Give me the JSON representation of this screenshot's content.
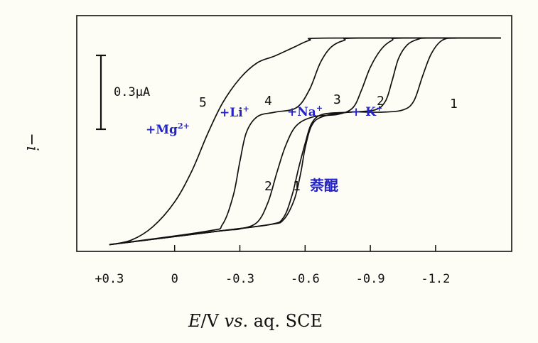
{
  "chart_data": {
    "type": "line",
    "title": "",
    "xlabel_parts": {
      "e": "E",
      "slash_v": "/V ",
      "vs": "vs",
      "rest": ". aq. SCE"
    },
    "ylabel": "−i",
    "xlim": [
      0.45,
      -1.55
    ],
    "ylim": [
      0.0,
      1.05
    ],
    "x_ticks": [
      {
        "value": 0.3,
        "label": "+0.3"
      },
      {
        "value": 0.0,
        "label": "0"
      },
      {
        "value": -0.3,
        "label": "-0.3"
      },
      {
        "value": -0.6,
        "label": "-0.6"
      },
      {
        "value": -0.9,
        "label": "-0.9"
      },
      {
        "value": -1.2,
        "label": "-1.2"
      }
    ],
    "scale_bar": {
      "label": "0.3μA"
    },
    "series": [
      {
        "name": "1",
        "x": [
          0.3,
          -0.2,
          -0.44,
          -0.5,
          -0.55,
          -0.58,
          -0.6,
          -0.63,
          -0.68,
          -0.8,
          -0.95,
          -1.05,
          -1.1,
          -1.14,
          -1.18,
          -1.23,
          -1.3,
          -1.5
        ],
        "y": [
          0.03,
          0.09,
          0.12,
          0.14,
          0.23,
          0.35,
          0.46,
          0.56,
          0.6,
          0.62,
          0.62,
          0.63,
          0.67,
          0.78,
          0.88,
          0.94,
          0.95,
          0.95
        ]
      },
      {
        "name": "2",
        "x": [
          0.3,
          -0.2,
          -0.44,
          -0.5,
          -0.54,
          -0.57,
          -0.6,
          -0.63,
          -0.68,
          -0.8,
          -0.92,
          -0.97,
          -1.0,
          -1.03,
          -1.07,
          -1.12,
          -1.18,
          -1.5
        ],
        "y": [
          0.03,
          0.09,
          0.12,
          0.15,
          0.25,
          0.37,
          0.48,
          0.57,
          0.61,
          0.62,
          0.63,
          0.67,
          0.76,
          0.86,
          0.92,
          0.945,
          0.95,
          0.95
        ]
      },
      {
        "name": "3",
        "x": [
          0.3,
          -0.2,
          -0.3,
          -0.38,
          -0.43,
          -0.47,
          -0.51,
          -0.56,
          -0.64,
          -0.75,
          -0.82,
          -0.86,
          -0.9,
          -0.95,
          -1.0,
          -1.05,
          -1.5
        ],
        "y": [
          0.03,
          0.09,
          0.1,
          0.13,
          0.22,
          0.35,
          0.47,
          0.56,
          0.6,
          0.61,
          0.64,
          0.72,
          0.82,
          0.9,
          0.94,
          0.95,
          0.95
        ]
      },
      {
        "name": "4",
        "x": [
          0.3,
          -0.15,
          -0.22,
          -0.27,
          -0.3,
          -0.33,
          -0.38,
          -0.46,
          -0.56,
          -0.62,
          -0.67,
          -0.72,
          -0.78,
          -0.85,
          -1.5
        ],
        "y": [
          0.03,
          0.09,
          0.12,
          0.25,
          0.4,
          0.53,
          0.6,
          0.62,
          0.64,
          0.72,
          0.84,
          0.91,
          0.94,
          0.95,
          0.95
        ]
      },
      {
        "name": "5",
        "x": [
          0.3,
          0.2,
          0.1,
          0.0,
          -0.08,
          -0.15,
          -0.22,
          -0.3,
          -0.38,
          -0.46,
          -0.55,
          -0.62,
          -0.7,
          -1.5
        ],
        "y": [
          0.03,
          0.05,
          0.11,
          0.22,
          0.36,
          0.52,
          0.66,
          0.77,
          0.84,
          0.87,
          0.91,
          0.94,
          0.95,
          0.95
        ]
      }
    ],
    "annotations": [
      {
        "text": "5",
        "kind": "num"
      },
      {
        "text": "4",
        "kind": "num"
      },
      {
        "text": "3",
        "kind": "num"
      },
      {
        "text": "2",
        "kind": "num"
      },
      {
        "text": "1",
        "kind": "num"
      },
      {
        "text": "2",
        "kind": "num"
      },
      {
        "text": "1",
        "kind": "num"
      },
      {
        "text": "+Mg",
        "sup": "2+",
        "kind": "ion"
      },
      {
        "text": "+Li",
        "sup": "+",
        "kind": "ion"
      },
      {
        "text": "+Na",
        "sup": "+",
        "kind": "ion"
      },
      {
        "text": "+ K",
        "sup": "+",
        "kind": "ion"
      },
      {
        "text": "萘醌",
        "kind": "cn"
      }
    ],
    "colors": {
      "curve": "#111111",
      "ion_label": "#2323c8",
      "background": "#fdfdf6"
    }
  }
}
